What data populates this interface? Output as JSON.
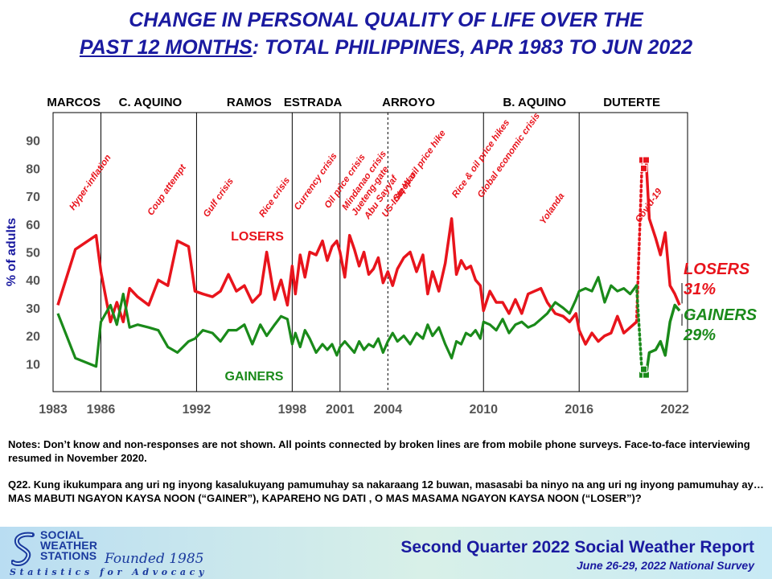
{
  "title": {
    "line1": "CHANGE IN PERSONAL QUALITY OF LIFE OVER THE",
    "line2_underlined": "PAST 12 MONTHS",
    "line2_rest": ": TOTAL PHILIPPINES, APR 1983 TO JUN 2022"
  },
  "chart_data": {
    "type": "line",
    "ylabel": "% of adults",
    "ylim": [
      0,
      100
    ],
    "xlim": [
      1983,
      2022.8
    ],
    "yticks": [
      10,
      20,
      30,
      40,
      50,
      60,
      70,
      80,
      90
    ],
    "xticks": [
      {
        "year": 1983,
        "label": "1983"
      },
      {
        "year": 1986,
        "label": "1986"
      },
      {
        "year": 1992,
        "label": "1992"
      },
      {
        "year": 1998,
        "label": "1998"
      },
      {
        "year": 2001,
        "label": "2001"
      },
      {
        "year": 2004,
        "label": "2004"
      },
      {
        "year": 2010,
        "label": "2010"
      },
      {
        "year": 2016,
        "label": "2016"
      },
      {
        "year": 2022,
        "label": "2022"
      }
    ],
    "presidents": [
      {
        "name": "MARCOS",
        "start": 1983,
        "end": 1986,
        "label_at": 1984.3
      },
      {
        "name": "C. AQUINO",
        "start": 1986,
        "end": 1992,
        "label_at": 1989.1
      },
      {
        "name": "RAMOS",
        "start": 1992,
        "end": 1998,
        "label_at": 1995.3
      },
      {
        "name": "ESTRADA",
        "start": 1998,
        "end": 2001,
        "label_at": 1999.3
      },
      {
        "name": "ARROYO",
        "start": 2001,
        "end": 2010,
        "label_at": 2005.3
      },
      {
        "name": "B. AQUINO",
        "start": 2010,
        "end": 2016,
        "label_at": 2013.2
      },
      {
        "name": "DUTERTE",
        "start": 2016,
        "end": 2022,
        "label_at": 2019.3
      }
    ],
    "term_lines": [
      1986,
      1992,
      1998,
      2001,
      2010,
      2016
    ],
    "dashed_lines": [
      2004
    ],
    "events": [
      {
        "label": "Hyper-inflation",
        "x": 1984.3
      },
      {
        "label": "Coup attempt",
        "x": 1989.2
      },
      {
        "label": "Gulf crisis",
        "x": 1992.7
      },
      {
        "label": "Rice crisis",
        "x": 1996.2
      },
      {
        "label": "Currency crisis",
        "x": 1998.4
      },
      {
        "label": "Oil price crisis",
        "x": 2000.3
      },
      {
        "label": "Mindanao crisis",
        "x": 2001.4
      },
      {
        "label": "Jueteng-gate",
        "x": 2002.0
      },
      {
        "label": "Abu Sayyaf",
        "x": 2002.8
      },
      {
        "label": "US-Iraq War",
        "x": 2003.9
      },
      {
        "label": "Steep oil price hike",
        "x": 2004.6
      },
      {
        "label": "Rice & oil price hikes",
        "x": 2008.3
      },
      {
        "label": "Global economic crisis",
        "x": 2009.9
      },
      {
        "label": "Yolanda",
        "x": 2013.8
      },
      {
        "label": "Covid-19",
        "x": 2019.8
      }
    ],
    "series": [
      {
        "name": "LOSERS",
        "color": "#e8141c",
        "x": [
          1983.3,
          1984.4,
          1985.7,
          1986.0,
          1986.6,
          1987.0,
          1987.4,
          1987.8,
          1988.3,
          1989.0,
          1989.6,
          1990.2,
          1990.8,
          1991.5,
          1991.9,
          1992.4,
          1993.0,
          1993.5,
          1994.0,
          1994.5,
          1995.0,
          1995.5,
          1996.0,
          1996.4,
          1996.9,
          1997.3,
          1997.7,
          1998.0,
          1998.2,
          1998.5,
          1998.8,
          1999.1,
          1999.5,
          1999.9,
          2000.2,
          2000.5,
          2000.8,
          2001.0,
          2001.3,
          2001.6,
          2001.9,
          2002.2,
          2002.5,
          2002.8,
          2003.1,
          2003.4,
          2003.7,
          2004.0,
          2004.3,
          2004.6,
          2005.0,
          2005.4,
          2005.8,
          2006.2,
          2006.5,
          2006.8,
          2007.2,
          2007.6,
          2008.0,
          2008.3,
          2008.6,
          2008.9,
          2009.2,
          2009.5,
          2009.8,
          2010.0,
          2010.4,
          2010.8,
          2011.2,
          2011.6,
          2012.0,
          2012.4,
          2012.8,
          2013.2,
          2013.6,
          2014.0,
          2014.5,
          2015.0,
          2015.4,
          2015.8,
          2016.0,
          2016.4,
          2016.8,
          2017.2,
          2017.6,
          2018.0,
          2018.4,
          2018.8,
          2019.2,
          2019.6
        ],
        "y": [
          31,
          51,
          56,
          43,
          25,
          32,
          25,
          37,
          34,
          31,
          40,
          38,
          54,
          52,
          36,
          35,
          34,
          36,
          42,
          36,
          38,
          32,
          35,
          50,
          33,
          40,
          31,
          45,
          35,
          49,
          41,
          50,
          49,
          54,
          47,
          52,
          54,
          50,
          41,
          56,
          51,
          45,
          50,
          42,
          44,
          48,
          39,
          43,
          38,
          44,
          48,
          50,
          43,
          49,
          35,
          43,
          36,
          46,
          62,
          42,
          47,
          44,
          45,
          40,
          38,
          29,
          36,
          32,
          32,
          28,
          33,
          28,
          35,
          36,
          37,
          32,
          28,
          27,
          25,
          28,
          22,
          17,
          21,
          18,
          20,
          21,
          27,
          21,
          23,
          25
        ]
      },
      {
        "name": "GAINERS",
        "color": "#1a8a1a",
        "x": [
          1983.3,
          1984.4,
          1985.7,
          1986.0,
          1986.6,
          1987.0,
          1987.4,
          1987.8,
          1988.3,
          1989.0,
          1989.6,
          1990.2,
          1990.8,
          1991.5,
          1991.9,
          1992.4,
          1993.0,
          1993.5,
          1994.0,
          1994.5,
          1995.0,
          1995.5,
          1996.0,
          1996.4,
          1996.9,
          1997.3,
          1997.7,
          1998.0,
          1998.2,
          1998.5,
          1998.8,
          1999.1,
          1999.5,
          1999.9,
          2000.2,
          2000.5,
          2000.8,
          2001.0,
          2001.3,
          2001.6,
          2001.9,
          2002.2,
          2002.5,
          2002.8,
          2003.1,
          2003.4,
          2003.7,
          2004.0,
          2004.3,
          2004.6,
          2005.0,
          2005.4,
          2005.8,
          2006.2,
          2006.5,
          2006.8,
          2007.2,
          2007.6,
          2008.0,
          2008.3,
          2008.6,
          2008.9,
          2009.2,
          2009.5,
          2009.8,
          2010.0,
          2010.4,
          2010.8,
          2011.2,
          2011.6,
          2012.0,
          2012.4,
          2012.8,
          2013.2,
          2013.6,
          2014.0,
          2014.5,
          2015.0,
          2015.4,
          2015.8,
          2016.0,
          2016.4,
          2016.8,
          2017.2,
          2017.6,
          2018.0,
          2018.4,
          2018.8,
          2019.2,
          2019.6
        ],
        "y": [
          28,
          12,
          9,
          25,
          31,
          24,
          35,
          23,
          24,
          23,
          22,
          16,
          14,
          18,
          19,
          22,
          21,
          18,
          22,
          22,
          24,
          17,
          24,
          20,
          24,
          27,
          26,
          17,
          21,
          16,
          22,
          19,
          14,
          17,
          15,
          17,
          13,
          16,
          18,
          16,
          14,
          18,
          15,
          17,
          16,
          19,
          14,
          18,
          21,
          18,
          20,
          17,
          21,
          19,
          24,
          20,
          23,
          17,
          12,
          18,
          17,
          21,
          20,
          22,
          19,
          25,
          24,
          22,
          26,
          21,
          24,
          25,
          23,
          24,
          26,
          28,
          32,
          30,
          28,
          33,
          36,
          37,
          36,
          41,
          32,
          38,
          36,
          37,
          35,
          38
        ]
      }
    ],
    "dotted_segments": [
      {
        "series": "LOSERS",
        "x": [
          2019.6,
          2019.95
        ],
        "y": [
          25,
          83
        ]
      },
      {
        "series": "GAINERS",
        "x": [
          2019.6,
          2019.95
        ],
        "y": [
          38,
          6
        ]
      }
    ],
    "square_markers": [
      {
        "series": "LOSERS",
        "x": [
          2019.95,
          2020.2,
          2020.05
        ],
        "y": [
          83,
          83,
          80
        ]
      },
      {
        "series": "GAINERS",
        "x": [
          2019.95,
          2020.2,
          2020.05
        ],
        "y": [
          6,
          6,
          8
        ]
      }
    ],
    "post_series": [
      {
        "name": "LOSERS",
        "x": [
          2020.2,
          2020.4,
          2020.8,
          2021.1,
          2021.4,
          2021.7,
          2022.0,
          2022.3
        ],
        "y": [
          83,
          62,
          55,
          49,
          57,
          38,
          35,
          31
        ]
      },
      {
        "name": "GAINERS",
        "x": [
          2020.2,
          2020.4,
          2020.8,
          2021.1,
          2021.4,
          2021.7,
          2022.0,
          2022.3
        ],
        "y": [
          6,
          14,
          15,
          18,
          13,
          25,
          31,
          29
        ]
      }
    ],
    "labels": {
      "losers_mid": "LOSERS",
      "gainers_mid": "GAINERS",
      "losers_end_name": "LOSERS",
      "losers_end_value": "31%",
      "gainers_end_name": "GAINERS",
      "gainers_end_value": "29%"
    },
    "colors": {
      "losers": "#e8141c",
      "gainers": "#1a8a1a",
      "axis": "#1a1aa0",
      "event": "#e8141c"
    }
  },
  "notes": {
    "line1": "Notes: Don’t know and non-responses are not shown. All points connected by broken lines are from mobile phone surveys. Face-to-face interviewing resumed in November 2020.",
    "q22": "Q22. Kung ikukumpara ang uri ng inyong kasalukuyang pamumuhay sa nakaraang 12 buwan, masasabi ba ninyo na ang uri ng inyong pamumuhay ay… MAS MABUTI NGAYON KAYSA NOON (“GAINER”), KAPAREHO NG DATI , O MAS MASAMA NGAYON KAYSA NOON (“LOSER”)?"
  },
  "footer": {
    "org_line1": "SOCIAL",
    "org_line2": "WEATHER",
    "org_line3": "STATIONS",
    "founded": "Founded 1985",
    "tagline": "Statistics for Advocacy",
    "report": "Second Quarter 2022 Social Weather Report",
    "survey": "June 26-29, 2022 National Survey"
  }
}
